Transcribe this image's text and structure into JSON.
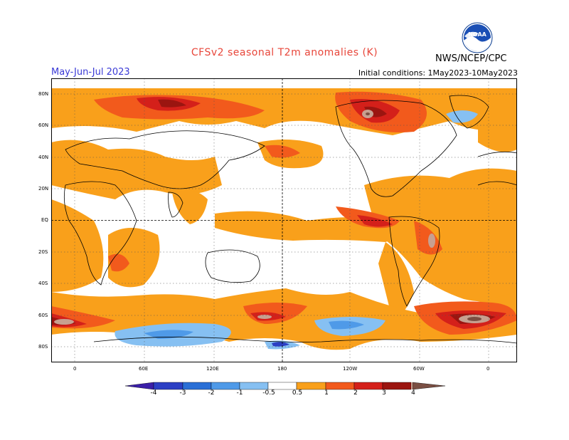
{
  "header": {
    "title": "CFSv2  seasonal  T2m  anomalies  (K)",
    "season": "May-Jun-Jul 2023",
    "initial_conditions": "Initial conditions: 1May2023-10May2023",
    "agency": "NWS/NCEP/CPC",
    "logo_text": "NOAA"
  },
  "map": {
    "lat_labels": [
      "80N",
      "60N",
      "40N",
      "20N",
      "EQ",
      "20S",
      "40S",
      "60S",
      "80S"
    ],
    "lon_labels": [
      "0",
      "60E",
      "120E",
      "180",
      "120W",
      "60W",
      "0"
    ]
  },
  "colorbar": {
    "labels": [
      "-4",
      "-3",
      "-2",
      "-1",
      "-0.5",
      "0.5",
      "1",
      "2",
      "3",
      "4"
    ],
    "colors": {
      "below_-4": "#3b1fa8",
      "-4_-3": "#2c3fc4",
      "-3_-2": "#2a6fd6",
      "-2_-1": "#4f9ae8",
      "-1_-0.5": "#86c0f2",
      "neutral": "#ffffff",
      "0.5_1": "#f9a01b",
      "1_2": "#f25a1c",
      "2_3": "#d4201a",
      "3_4": "#9b1510",
      "4_plus": "#c7a090",
      "above_4": "#7a4f43"
    }
  }
}
